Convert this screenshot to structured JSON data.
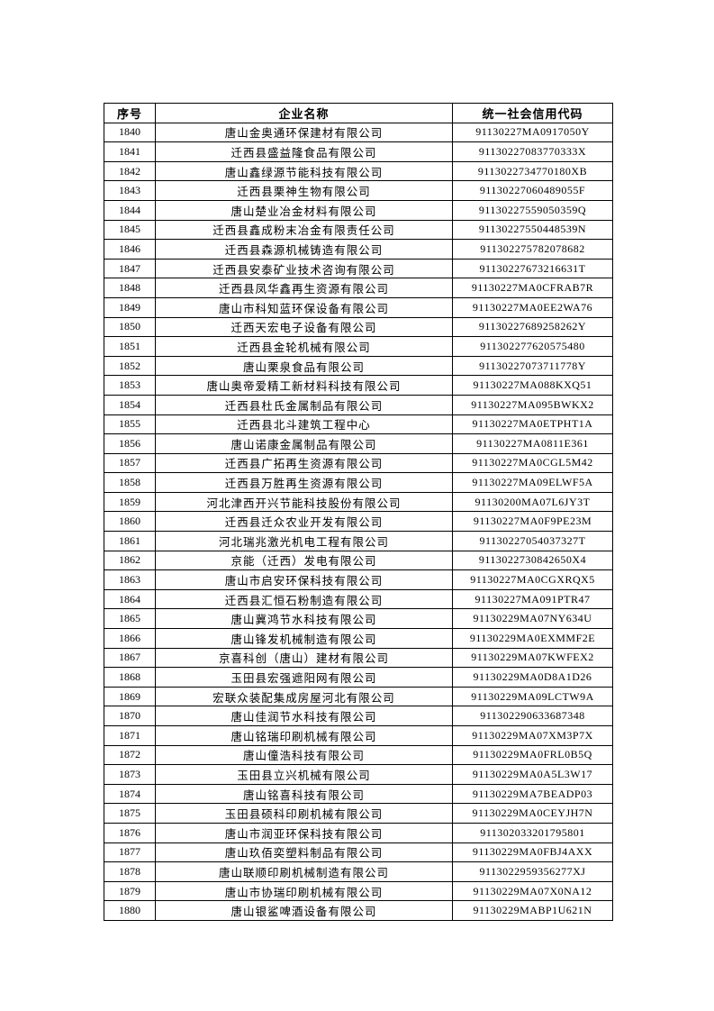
{
  "page": {
    "background_color": "#ffffff",
    "text_color": "#000000",
    "border_color": "#000000"
  },
  "table": {
    "columns": [
      "序号",
      "企业名称",
      "统一社会信用代码"
    ],
    "rows": [
      {
        "serial": "1840",
        "name": "唐山金奥通环保建材有限公司",
        "code": "91130227MA0917050Y"
      },
      {
        "serial": "1841",
        "name": "迁西县盛益隆食品有限公司",
        "code": "91130227083770333X"
      },
      {
        "serial": "1842",
        "name": "唐山鑫绿源节能科技有限公司",
        "code": "9113022734770180XB"
      },
      {
        "serial": "1843",
        "name": "迁西县栗神生物有限公司",
        "code": "91130227060489055F"
      },
      {
        "serial": "1844",
        "name": "唐山楚业冶金材料有限公司",
        "code": "91130227559050359Q"
      },
      {
        "serial": "1845",
        "name": "迁西县鑫成粉末冶金有限责任公司",
        "code": "91130227550448539N"
      },
      {
        "serial": "1846",
        "name": "迁西县森源机械铸造有限公司",
        "code": "911302275782078682"
      },
      {
        "serial": "1847",
        "name": "迁西县安泰矿业技术咨询有限公司",
        "code": "91130227673216631T"
      },
      {
        "serial": "1848",
        "name": "迁西县凤华鑫再生资源有限公司",
        "code": "91130227MA0CFRAB7R"
      },
      {
        "serial": "1849",
        "name": "唐山市科知蓝环保设备有限公司",
        "code": "91130227MA0EE2WA76"
      },
      {
        "serial": "1850",
        "name": "迁西天宏电子设备有限公司",
        "code": "91130227689258262Y"
      },
      {
        "serial": "1851",
        "name": "迁西县金轮机械有限公司",
        "code": "911302277620575480"
      },
      {
        "serial": "1852",
        "name": "唐山栗泉食品有限公司",
        "code": "91130227073711778Y"
      },
      {
        "serial": "1853",
        "name": "唐山奥帝爱精工新材料科技有限公司",
        "code": "91130227MA088KXQ51"
      },
      {
        "serial": "1854",
        "name": "迁西县杜氏金属制品有限公司",
        "code": "91130227MA095BWKX2"
      },
      {
        "serial": "1855",
        "name": "迁西县北斗建筑工程中心",
        "code": "91130227MA0ETPHT1A"
      },
      {
        "serial": "1856",
        "name": "唐山诺康金属制品有限公司",
        "code": "91130227MA0811E361"
      },
      {
        "serial": "1857",
        "name": "迁西县广拓再生资源有限公司",
        "code": "91130227MA0CGL5M42"
      },
      {
        "serial": "1858",
        "name": "迁西县万胜再生资源有限公司",
        "code": "91130227MA09ELWF5A"
      },
      {
        "serial": "1859",
        "name": "河北津西开兴节能科技股份有限公司",
        "code": "91130200MA07L6JY3T"
      },
      {
        "serial": "1860",
        "name": "迁西县迁众农业开发有限公司",
        "code": "91130227MA0F9PE23M"
      },
      {
        "serial": "1861",
        "name": "河北瑞兆激光机电工程有限公司",
        "code": "91130227054037327T"
      },
      {
        "serial": "1862",
        "name": "京能（迁西）发电有限公司",
        "code": "9113022730842650X4"
      },
      {
        "serial": "1863",
        "name": "唐山市启安环保科技有限公司",
        "code": "91130227MA0CGXRQX5"
      },
      {
        "serial": "1864",
        "name": "迁西县汇恒石粉制造有限公司",
        "code": "91130227MA091PTR47"
      },
      {
        "serial": "1865",
        "name": "唐山冀鸿节水科技有限公司",
        "code": "91130229MA07NY634U"
      },
      {
        "serial": "1866",
        "name": "唐山锋发机械制造有限公司",
        "code": "91130229MA0EXMMF2E"
      },
      {
        "serial": "1867",
        "name": "京喜科创（唐山）建材有限公司",
        "code": "91130229MA07KWFEX2"
      },
      {
        "serial": "1868",
        "name": "玉田县宏强遮阳网有限公司",
        "code": "91130229MA0D8A1D26"
      },
      {
        "serial": "1869",
        "name": "宏联众装配集成房屋河北有限公司",
        "code": "91130229MA09LCTW9A"
      },
      {
        "serial": "1870",
        "name": "唐山佳润节水科技有限公司",
        "code": "911302290633687348"
      },
      {
        "serial": "1871",
        "name": "唐山铭瑞印刷机械有限公司",
        "code": "91130229MA07XM3P7X"
      },
      {
        "serial": "1872",
        "name": "唐山僮浩科技有限公司",
        "code": "91130229MA0FRL0B5Q"
      },
      {
        "serial": "1873",
        "name": "玉田县立兴机械有限公司",
        "code": "91130229MA0A5L3W17"
      },
      {
        "serial": "1874",
        "name": "唐山铭喜科技有限公司",
        "code": "91130229MA7BEADP03"
      },
      {
        "serial": "1875",
        "name": "玉田县硕科印刷机械有限公司",
        "code": "91130229MA0CEYJH7N"
      },
      {
        "serial": "1876",
        "name": "唐山市润亚环保科技有限公司",
        "code": "911302033201795801"
      },
      {
        "serial": "1877",
        "name": "唐山玖佰奕塑料制品有限公司",
        "code": "91130229MA0FBJ4AXX"
      },
      {
        "serial": "1878",
        "name": "唐山联顺印刷机械制造有限公司",
        "code": "9113022959356277XJ"
      },
      {
        "serial": "1879",
        "name": "唐山市协瑞印刷机械有限公司",
        "code": "91130229MA07X0NA12"
      },
      {
        "serial": "1880",
        "name": "唐山银鲨啤酒设备有限公司",
        "code": "91130229MABP1U621N"
      }
    ]
  }
}
